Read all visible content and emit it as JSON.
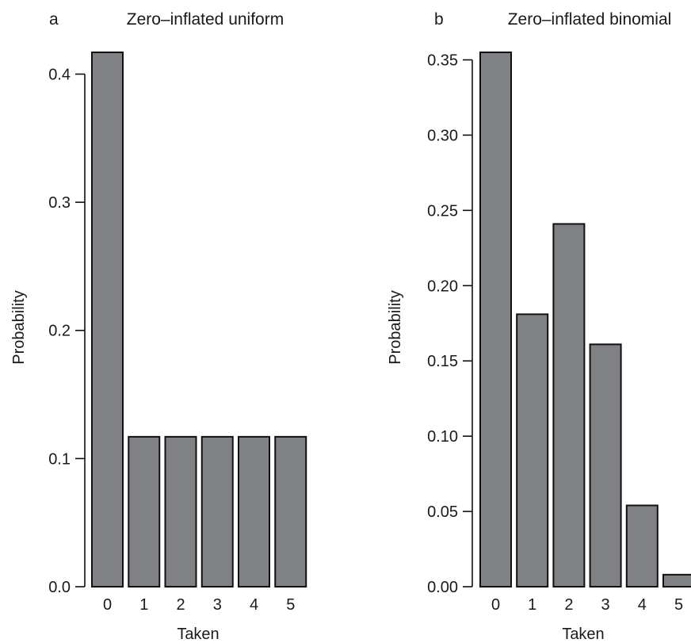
{
  "chart_data": [
    {
      "type": "bar",
      "panel_label": "a",
      "title": "Zero–inflated uniform",
      "xlabel": "Taken",
      "ylabel": "Probability",
      "categories": [
        "0",
        "1",
        "2",
        "3",
        "4",
        "5"
      ],
      "values": [
        0.417,
        0.117,
        0.117,
        0.117,
        0.117,
        0.117
      ],
      "yticks": [
        0.0,
        0.1,
        0.2,
        0.3,
        0.4
      ],
      "ytick_labels": [
        "0.0",
        "0.1",
        "0.2",
        "0.3",
        "0.4"
      ],
      "ylim": [
        0,
        0.417
      ],
      "grid": false,
      "bar_color": "#808185"
    },
    {
      "type": "bar",
      "panel_label": "b",
      "title": "Zero–inflated binomial",
      "xlabel": "Taken",
      "ylabel": "Probability",
      "categories": [
        "0",
        "1",
        "2",
        "3",
        "4",
        "5"
      ],
      "values": [
        0.355,
        0.181,
        0.241,
        0.161,
        0.054,
        0.008
      ],
      "yticks": [
        0.0,
        0.05,
        0.1,
        0.15,
        0.2,
        0.25,
        0.3,
        0.35
      ],
      "ytick_labels": [
        "0.00",
        "0.05",
        "0.10",
        "0.15",
        "0.20",
        "0.25",
        "0.30",
        "0.35"
      ],
      "ylim": [
        0,
        0.355
      ],
      "grid": false,
      "bar_color": "#808185"
    }
  ]
}
